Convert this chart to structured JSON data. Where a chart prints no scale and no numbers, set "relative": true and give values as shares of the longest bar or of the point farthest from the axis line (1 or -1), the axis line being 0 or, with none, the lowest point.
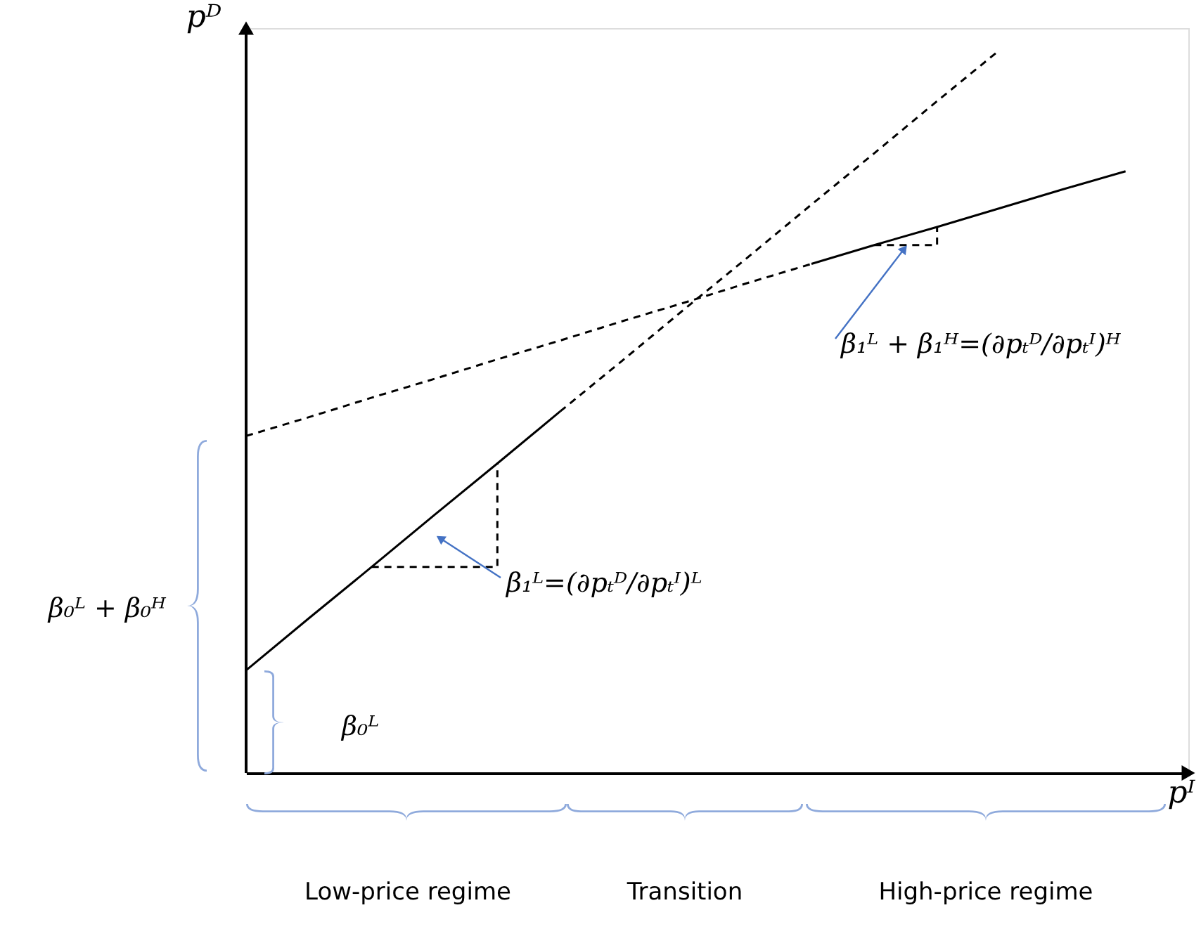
{
  "chart_data": {
    "type": "line",
    "relative": true,
    "xlabel": "pᴵ",
    "ylabel": "pᴰ",
    "grid": false,
    "tick_labels": false,
    "categories": [
      null,
      null,
      null,
      null,
      null,
      null,
      null,
      null,
      null,
      null,
      null,
      null,
      null,
      null,
      null,
      null
    ],
    "series": [
      {
        "color": "#000000",
        "line_style": "solid",
        "values": [
          0.142,
          0.214,
          0.285,
          0.357,
          0.428,
          0.5,
          null,
          null,
          null,
          null,
          null,
          null,
          null,
          null,
          null,
          null
        ]
      },
      {
        "color": "#000000",
        "line_style": "dashed",
        "values": [
          null,
          null,
          null,
          null,
          null,
          0.5,
          0.571,
          0.643,
          0.714,
          0.786,
          0.857,
          0.929,
          1.0,
          null,
          null,
          null
        ]
      },
      {
        "color": "#000000",
        "line_style": "dashed",
        "values": [
          0.466,
          0.492,
          0.519,
          0.545,
          0.572,
          0.598,
          0.625,
          0.651,
          0.678,
          0.704,
          null,
          null,
          null,
          null,
          null,
          null
        ]
      },
      {
        "color": "#000000",
        "line_style": "solid",
        "values": [
          null,
          null,
          null,
          null,
          null,
          null,
          null,
          null,
          null,
          0.704,
          0.73,
          0.755,
          0.781,
          0.807,
          0.832,
          null
        ]
      },
      {
        "type": "step",
        "color": "#000000",
        "line_style": "dashed",
        "values": [
          null,
          null,
          0.285,
          null,
          0.428,
          null,
          null,
          null,
          null,
          null,
          null,
          null,
          null,
          null,
          null,
          null
        ]
      },
      {
        "type": "step",
        "color": "#000000",
        "line_style": "dashed",
        "values": [
          null,
          null,
          null,
          null,
          null,
          null,
          null,
          null,
          null,
          null,
          0.73,
          0.755,
          null,
          null,
          null,
          null
        ]
      }
    ],
    "annotations": [
      "β₁ᴸ=(∂pₜᴰ/∂pₜᴵ)ᴸ",
      "β₁ᴸ + β₁ᴴ=(∂pₜᴰ/∂pₜᴵ)ᴴ",
      "β₀ᴸ + β₀ᴴ",
      "β₀ᴸ",
      "Low-price regime",
      "Transition",
      "High-price regime"
    ]
  }
}
